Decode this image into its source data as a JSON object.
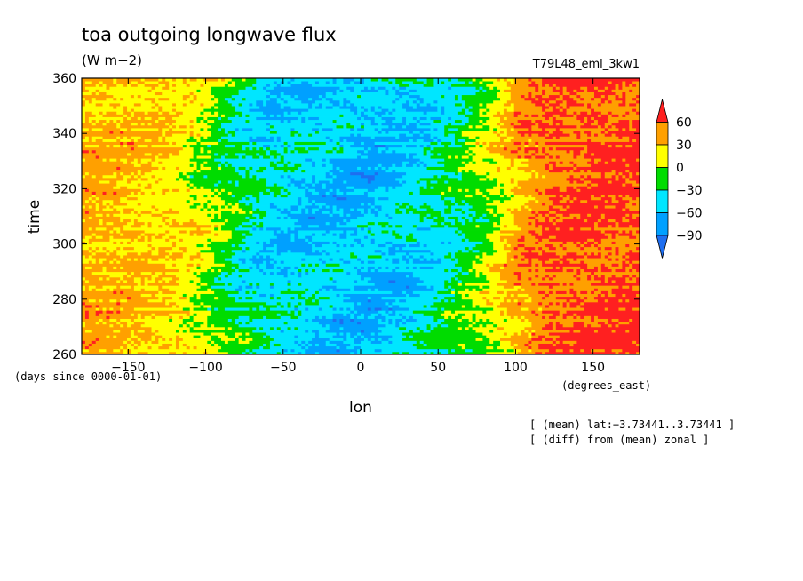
{
  "chart_data": {
    "type": "heatmap",
    "title": "toa outgoing longwave flux",
    "subtitle": "(W m−2)",
    "run_label": "T79L48_eml_3kw1",
    "xlabel": "lon",
    "ylabel": "time",
    "x_units": "(degrees_east)",
    "y_units": "(days since 0000-01-01)",
    "xlim": [
      -180,
      180
    ],
    "ylim": [
      260,
      360
    ],
    "x_ticks": [
      -150,
      -100,
      -50,
      0,
      50,
      100,
      150
    ],
    "y_ticks": [
      260,
      280,
      300,
      320,
      340,
      360
    ],
    "colorbar": {
      "levels": [
        -90,
        -60,
        -30,
        0,
        30,
        60
      ],
      "labels": [
        "60",
        "30",
        "0",
        "−30",
        "−60",
        "−90"
      ],
      "colors": [
        "#1e6ef0",
        "#00a0ff",
        "#00e6ff",
        "#00dc00",
        "#ffff00",
        "#ffa000",
        "#ff2020"
      ]
    },
    "annotations": [
      "[ (mean) lat:−3.73441..3.73441 ]",
      "[ (diff) from (mean) zonal ]"
    ],
    "zonal_profile": {
      "lon": [
        -180,
        -150,
        -120,
        -100,
        -80,
        -60,
        -40,
        -20,
        0,
        20,
        40,
        60,
        80,
        100,
        120,
        150,
        180
      ],
      "value": [
        40,
        35,
        25,
        5,
        -25,
        -45,
        -50,
        -55,
        -60,
        -55,
        -45,
        -25,
        0,
        40,
        60,
        65,
        65
      ]
    }
  }
}
